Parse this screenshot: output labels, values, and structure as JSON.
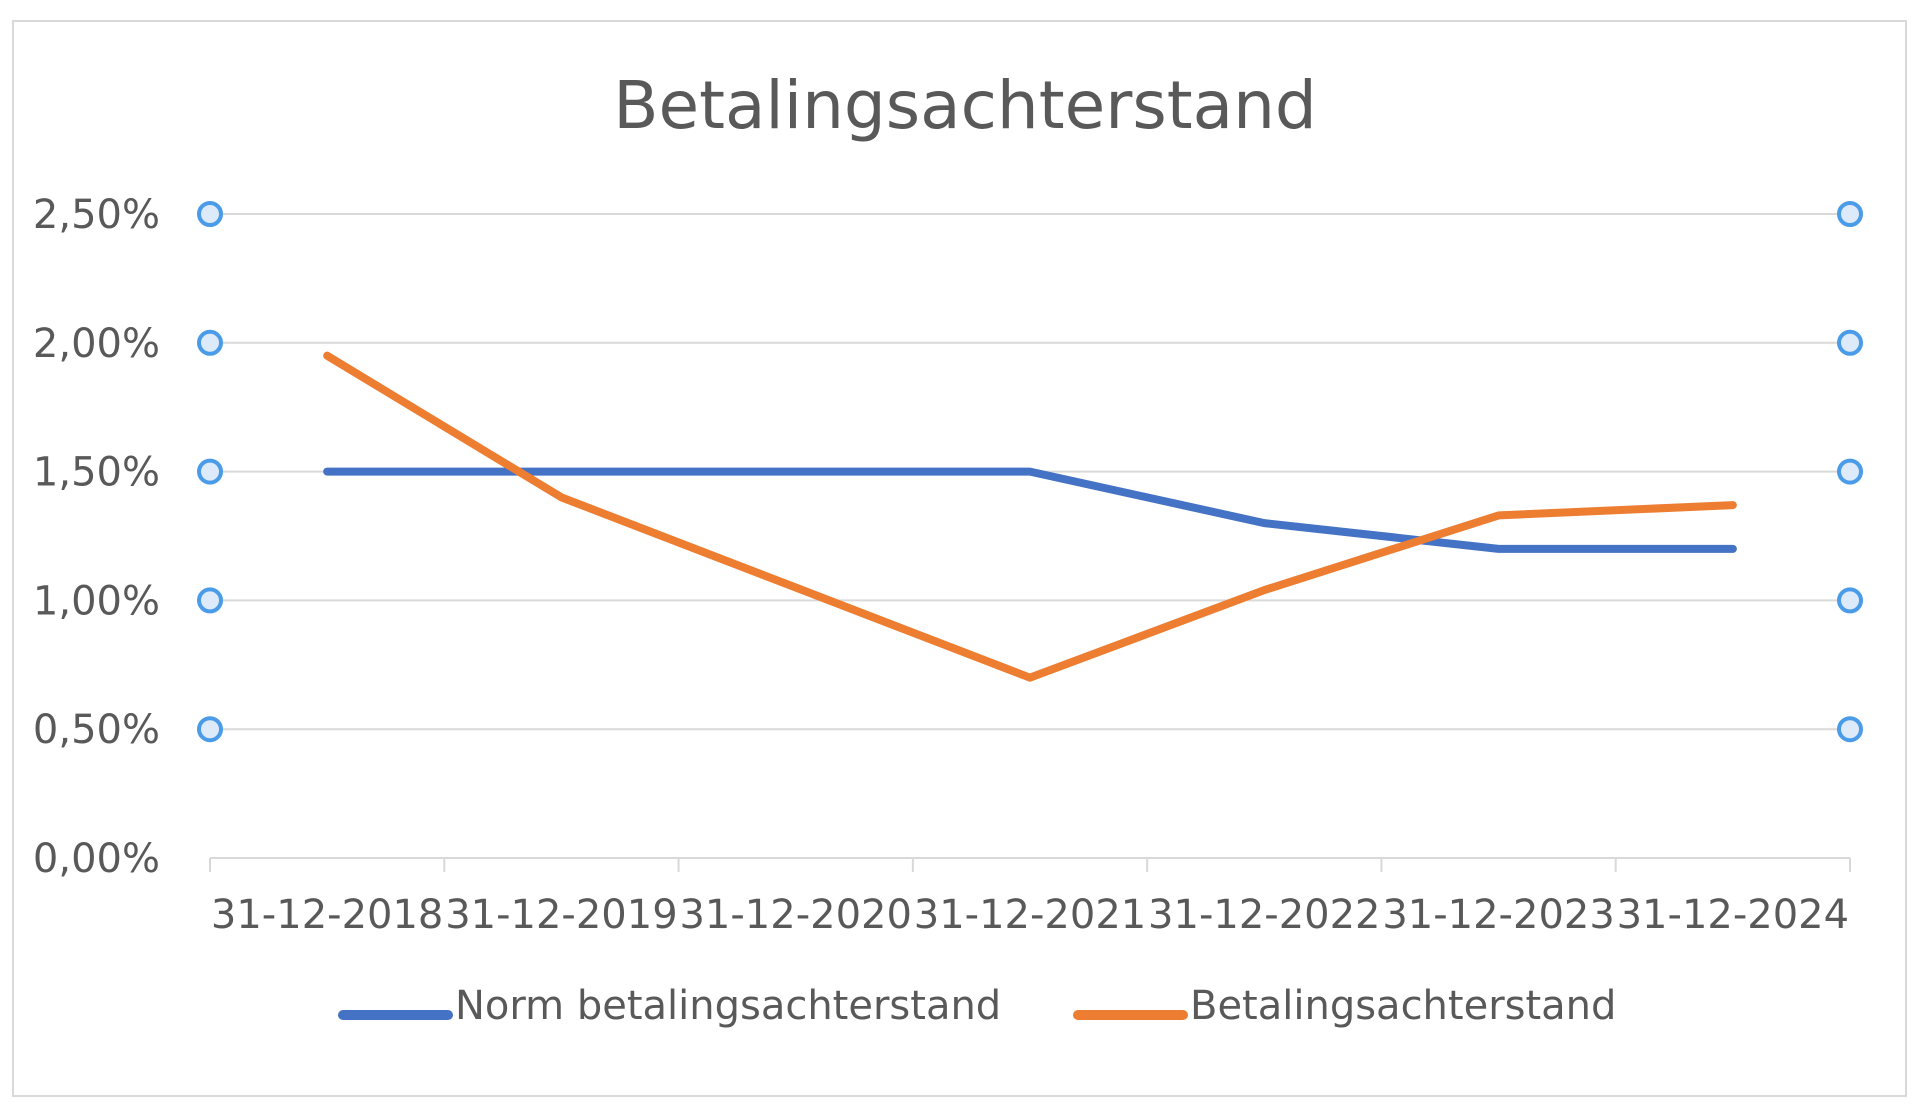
{
  "chart_data": {
    "type": "line",
    "title": "Betalingsachterstand",
    "categories": [
      "31-12-2018",
      "31-12-2019",
      "31-12-2020",
      "31-12-2021",
      "31-12-2022",
      "31-12-2023",
      "31-12-2024"
    ],
    "series": [
      {
        "name": "Norm betalingsachterstand",
        "color": "#4472c4",
        "values": [
          1.5,
          1.5,
          1.5,
          1.5,
          1.3,
          1.2,
          1.2
        ]
      },
      {
        "name": "Betalingsachterstand",
        "color": "#ed7d31",
        "values": [
          1.95,
          1.4,
          1.05,
          0.7,
          1.04,
          1.33,
          1.37
        ]
      }
    ],
    "y_ticks": [
      "0,00%",
      "0,50%",
      "1,00%",
      "1,50%",
      "2,00%",
      "2,50%"
    ],
    "y_tick_values": [
      0,
      0.5,
      1.0,
      1.5,
      2.0,
      2.5
    ],
    "ylim": [
      0,
      2.5
    ],
    "y_unit": "%",
    "grid": true,
    "gridline_color": "#d9d9d9",
    "legend_position": "bottom",
    "handle_color": "#4a9be8"
  }
}
